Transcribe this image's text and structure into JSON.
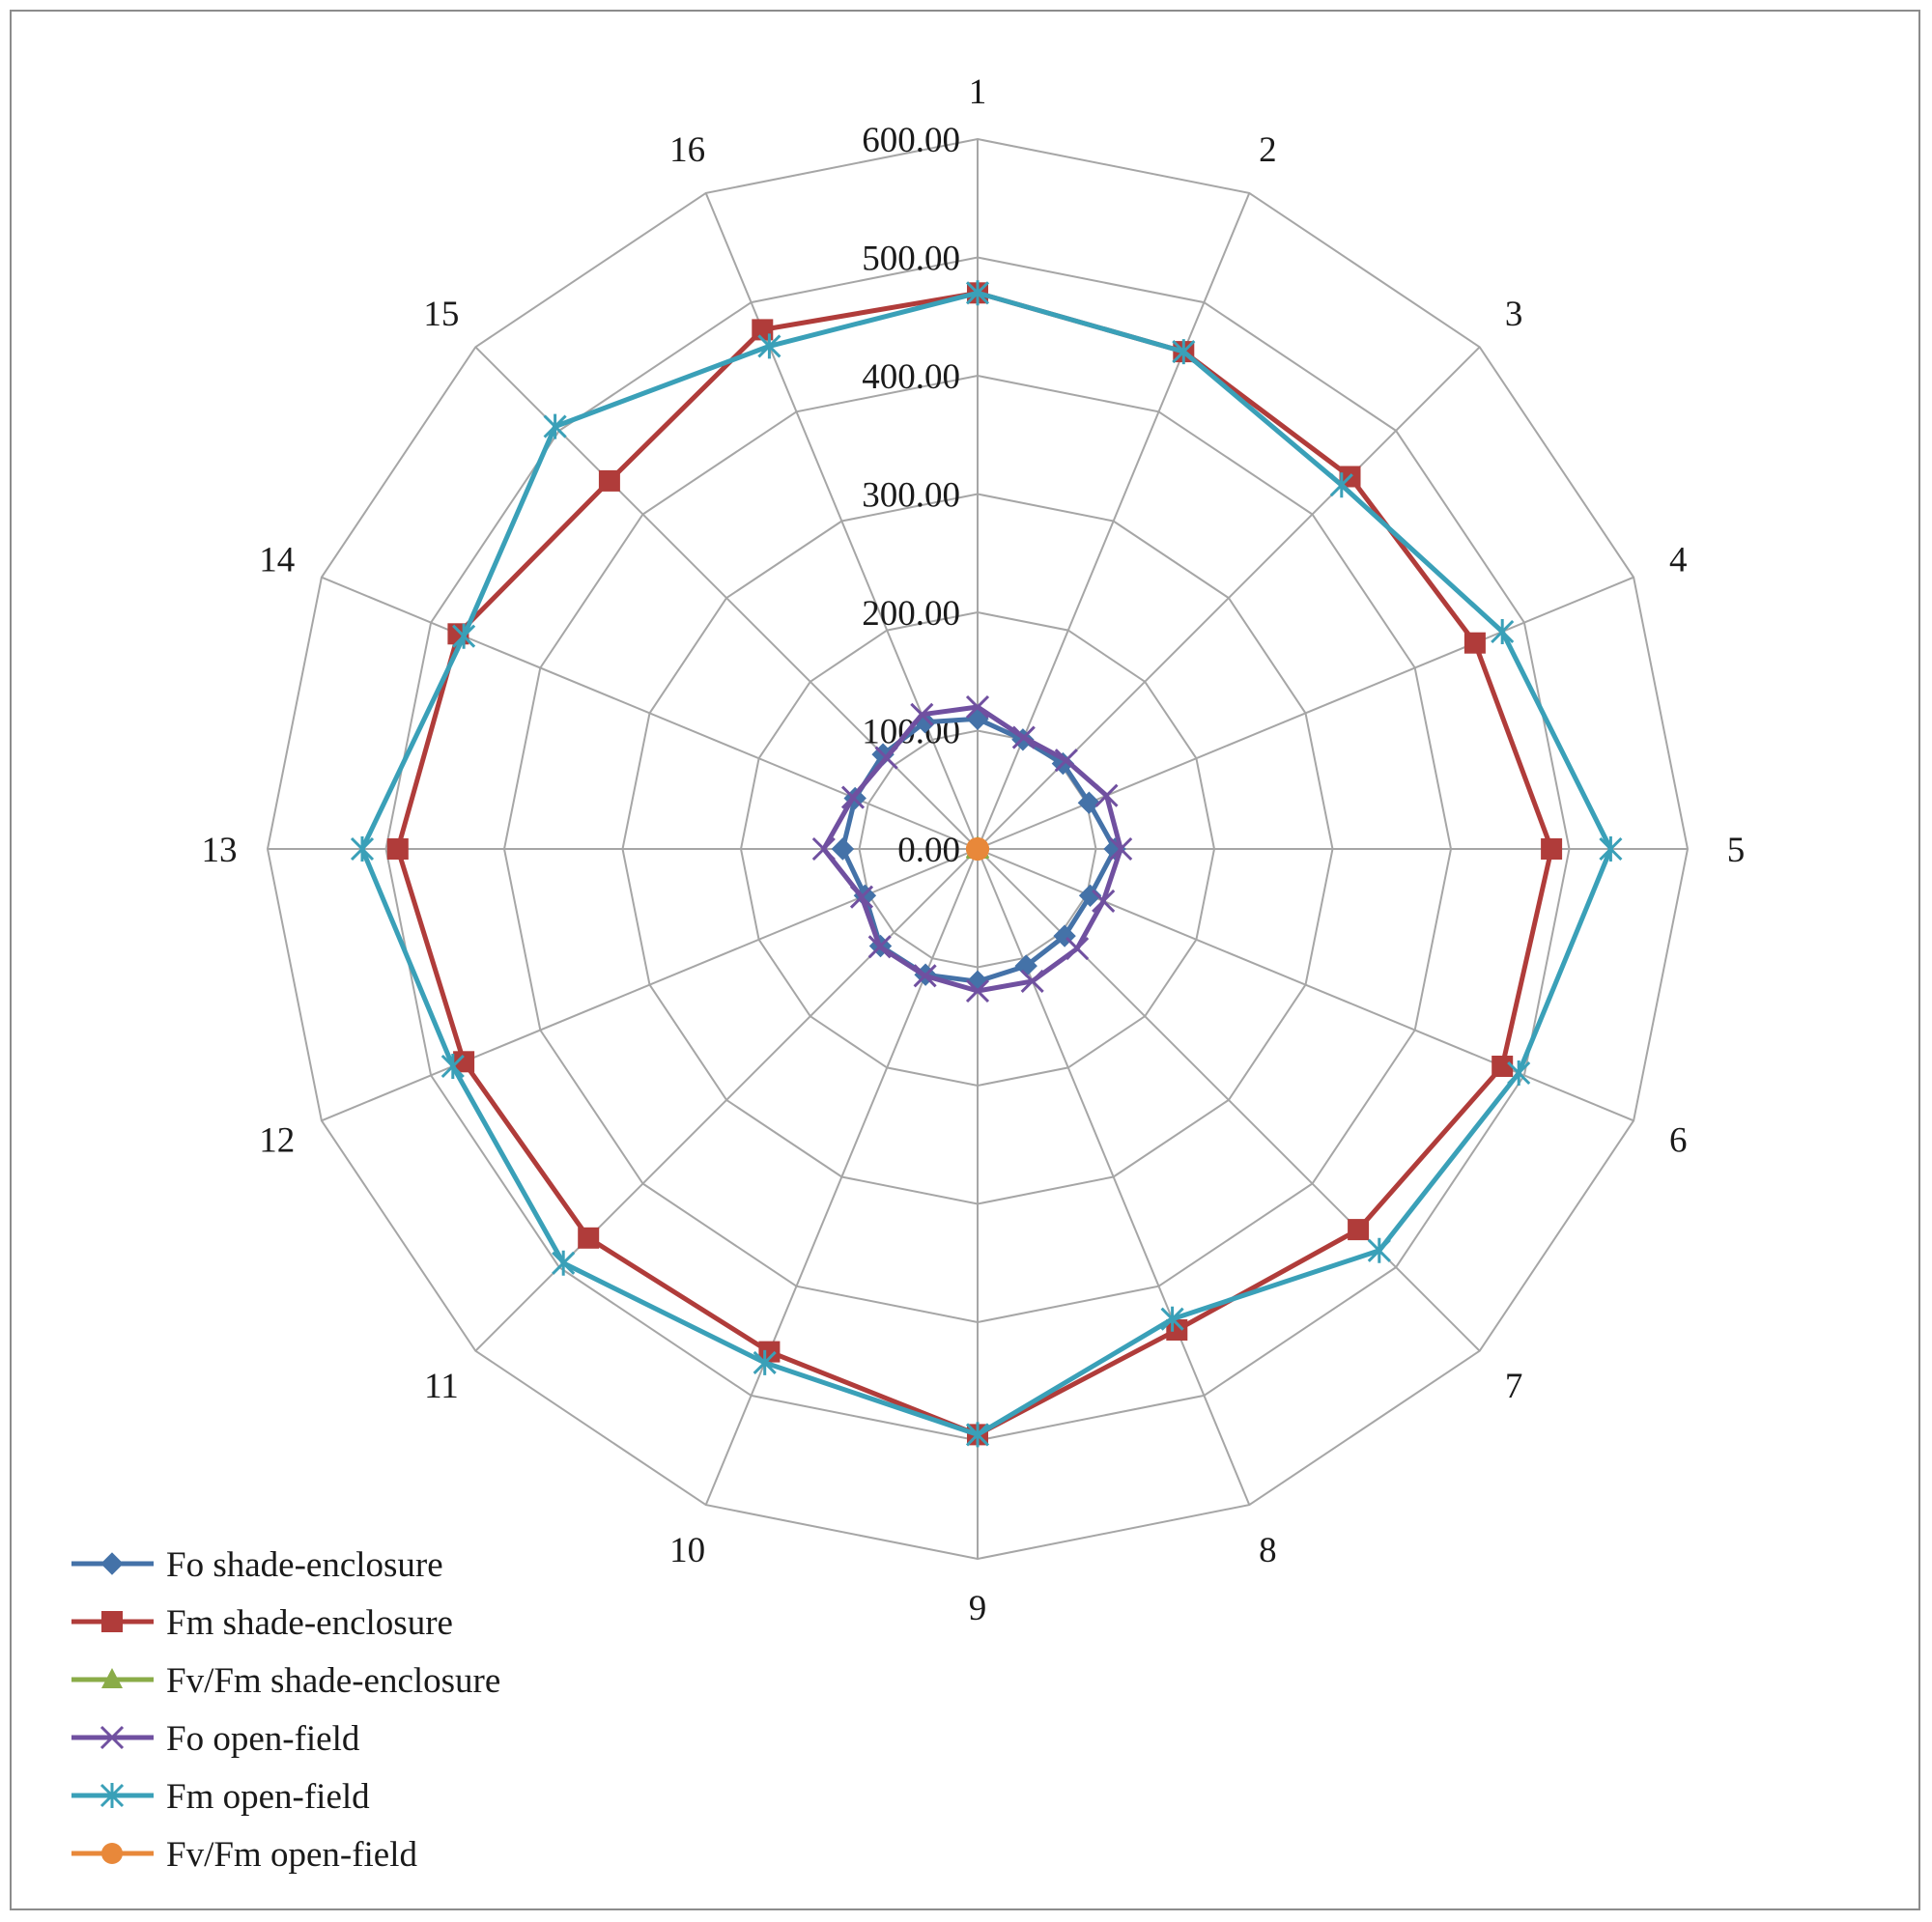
{
  "chart_data": {
    "type": "radar",
    "categories": [
      "1",
      "2",
      "3",
      "4",
      "5",
      "6",
      "7",
      "8",
      "9",
      "10",
      "11",
      "12",
      "13",
      "14",
      "15",
      "16"
    ],
    "rlim": [
      0,
      600
    ],
    "ticks": [
      "0.00",
      "100.00",
      "200.00",
      "300.00",
      "400.00",
      "500.00",
      "600.00"
    ],
    "tick_values": [
      0,
      100,
      200,
      300,
      400,
      500,
      600
    ],
    "grid": true,
    "legend_position": "bottom-left",
    "series": [
      {
        "name": "Fo shade-enclosure",
        "color": "#4472a8",
        "marker": "diamond",
        "values": [
          110,
          100,
          102,
          102,
          116,
          103,
          104,
          107,
          112,
          115,
          116,
          103,
          114,
          112,
          113,
          116
        ]
      },
      {
        "name": "Fm shade-enclosure",
        "color": "#b03c3a",
        "marker": "square",
        "values": [
          470,
          455,
          445,
          455,
          485,
          480,
          455,
          440,
          495,
          460,
          465,
          470,
          490,
          475,
          440,
          475
        ]
      },
      {
        "name": "Fv/Fm shade-enclosure",
        "color": "#8aac48",
        "marker": "triangle",
        "values": [
          0.8,
          0.8,
          0.8,
          0.8,
          0.8,
          0.8,
          0.8,
          0.8,
          0.8,
          0.8,
          0.8,
          0.8,
          0.8,
          0.8,
          0.8,
          0.8
        ]
      },
      {
        "name": "Fo open-field",
        "color": "#7050a0",
        "marker": "x",
        "values": [
          120,
          102,
          106,
          118,
          121,
          115,
          119,
          121,
          120,
          116,
          117,
          106,
          130,
          114,
          109,
          123
        ]
      },
      {
        "name": "Fm open-field",
        "color": "#3aa0b8",
        "marker": "star",
        "values": [
          470,
          455,
          435,
          480,
          535,
          495,
          480,
          430,
          495,
          470,
          495,
          480,
          520,
          470,
          505,
          460
        ]
      },
      {
        "name": "Fv/Fm open-field",
        "color": "#e8883a",
        "marker": "circle",
        "values": [
          0.8,
          0.8,
          0.8,
          0.8,
          0.8,
          0.8,
          0.8,
          0.8,
          0.8,
          0.8,
          0.8,
          0.8,
          0.8,
          0.8,
          0.8,
          0.8
        ]
      }
    ]
  }
}
